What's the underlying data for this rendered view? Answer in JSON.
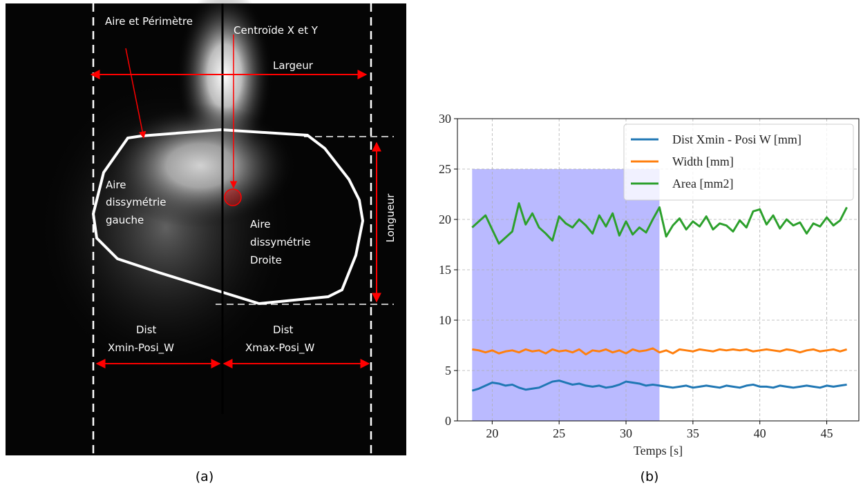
{
  "panel_a": {
    "labels": {
      "area_perimeter": "Aire et Périmètre",
      "centroid": "Centroïde X et Y",
      "width": "Largeur",
      "length": "Longueur",
      "left_area": [
        "Aire",
        "dissymétrie",
        "gauche"
      ],
      "right_area": [
        "Aire",
        "dissymétrie",
        "Droite"
      ],
      "dist_min": [
        "Dist",
        "Xmin-Posi_W"
      ],
      "dist_max": [
        "Dist",
        "Xmax-Posi_W"
      ]
    }
  },
  "captions": [
    "(a)",
    "(b)"
  ],
  "chart_data": {
    "type": "line",
    "xlabel": "Temps [s]",
    "x": [
      18.5,
      19,
      19.5,
      20,
      20.5,
      21,
      21.5,
      22,
      22.5,
      23,
      23.5,
      24,
      24.5,
      25,
      25.5,
      26,
      26.5,
      27,
      27.5,
      28,
      28.5,
      29,
      29.5,
      30,
      30.5,
      31,
      31.5,
      32,
      32.5,
      33,
      33.5,
      34,
      34.5,
      35,
      35.5,
      36,
      36.5,
      37,
      37.5,
      38,
      38.5,
      39,
      39.5,
      40,
      40.5,
      41,
      41.5,
      42,
      42.5,
      43,
      43.5,
      44,
      44.5,
      45,
      45.5,
      46,
      46.5
    ],
    "series": [
      {
        "name": "Dist Xmin - Posi W [mm]",
        "color": "#1f77b4",
        "values": [
          3.0,
          3.2,
          3.5,
          3.8,
          3.7,
          3.5,
          3.6,
          3.3,
          3.1,
          3.2,
          3.3,
          3.6,
          3.9,
          4.0,
          3.8,
          3.6,
          3.7,
          3.5,
          3.4,
          3.5,
          3.3,
          3.4,
          3.6,
          3.9,
          3.8,
          3.7,
          3.5,
          3.6,
          3.5,
          3.4,
          3.3,
          3.4,
          3.5,
          3.3,
          3.4,
          3.5,
          3.4,
          3.3,
          3.5,
          3.4,
          3.3,
          3.5,
          3.6,
          3.4,
          3.4,
          3.3,
          3.5,
          3.4,
          3.3,
          3.4,
          3.5,
          3.4,
          3.3,
          3.5,
          3.4,
          3.5,
          3.6
        ]
      },
      {
        "name": "Width [mm]",
        "color": "#ff7f0e",
        "values": [
          7.1,
          7.0,
          6.8,
          7.0,
          6.7,
          6.9,
          7.0,
          6.8,
          7.1,
          6.9,
          7.0,
          6.7,
          7.1,
          6.9,
          7.0,
          6.8,
          7.1,
          6.6,
          7.0,
          6.9,
          7.1,
          6.8,
          7.0,
          6.7,
          7.1,
          6.9,
          7.0,
          7.2,
          6.8,
          7.0,
          6.7,
          7.1,
          7.0,
          6.9,
          7.1,
          7.0,
          6.9,
          7.1,
          7.0,
          7.1,
          7.0,
          7.1,
          6.9,
          7.0,
          7.1,
          7.0,
          6.9,
          7.1,
          7.0,
          6.8,
          7.0,
          7.1,
          6.9,
          7.0,
          7.1,
          6.9,
          7.1
        ]
      },
      {
        "name": "Area [mm2]",
        "color": "#2ca02c",
        "values": [
          19.2,
          19.8,
          20.4,
          19.0,
          17.6,
          18.2,
          18.8,
          21.6,
          19.5,
          20.6,
          19.2,
          18.6,
          17.9,
          20.3,
          19.6,
          19.2,
          20.0,
          19.4,
          18.6,
          20.4,
          19.3,
          20.6,
          18.4,
          19.8,
          18.5,
          19.2,
          18.7,
          20.0,
          21.2,
          18.3,
          19.4,
          20.1,
          19.0,
          19.8,
          19.3,
          20.3,
          19.0,
          19.6,
          19.4,
          18.8,
          19.9,
          19.2,
          20.8,
          21.0,
          19.5,
          20.4,
          19.1,
          20.0,
          19.4,
          19.7,
          18.6,
          19.6,
          19.3,
          20.2,
          19.4,
          19.9,
          21.2
        ]
      }
    ],
    "span": {
      "x": [
        18.5,
        32.5
      ],
      "y": [
        0,
        25
      ],
      "color": "#0000ff"
    },
    "xlim": [
      17.4,
      47.4
    ],
    "ylim": [
      0,
      30
    ],
    "xticks": [
      20,
      25,
      30,
      35,
      40,
      45
    ],
    "yticks": [
      0,
      5,
      10,
      15,
      20,
      25,
      30
    ],
    "grid": true,
    "legend": "upper right"
  }
}
